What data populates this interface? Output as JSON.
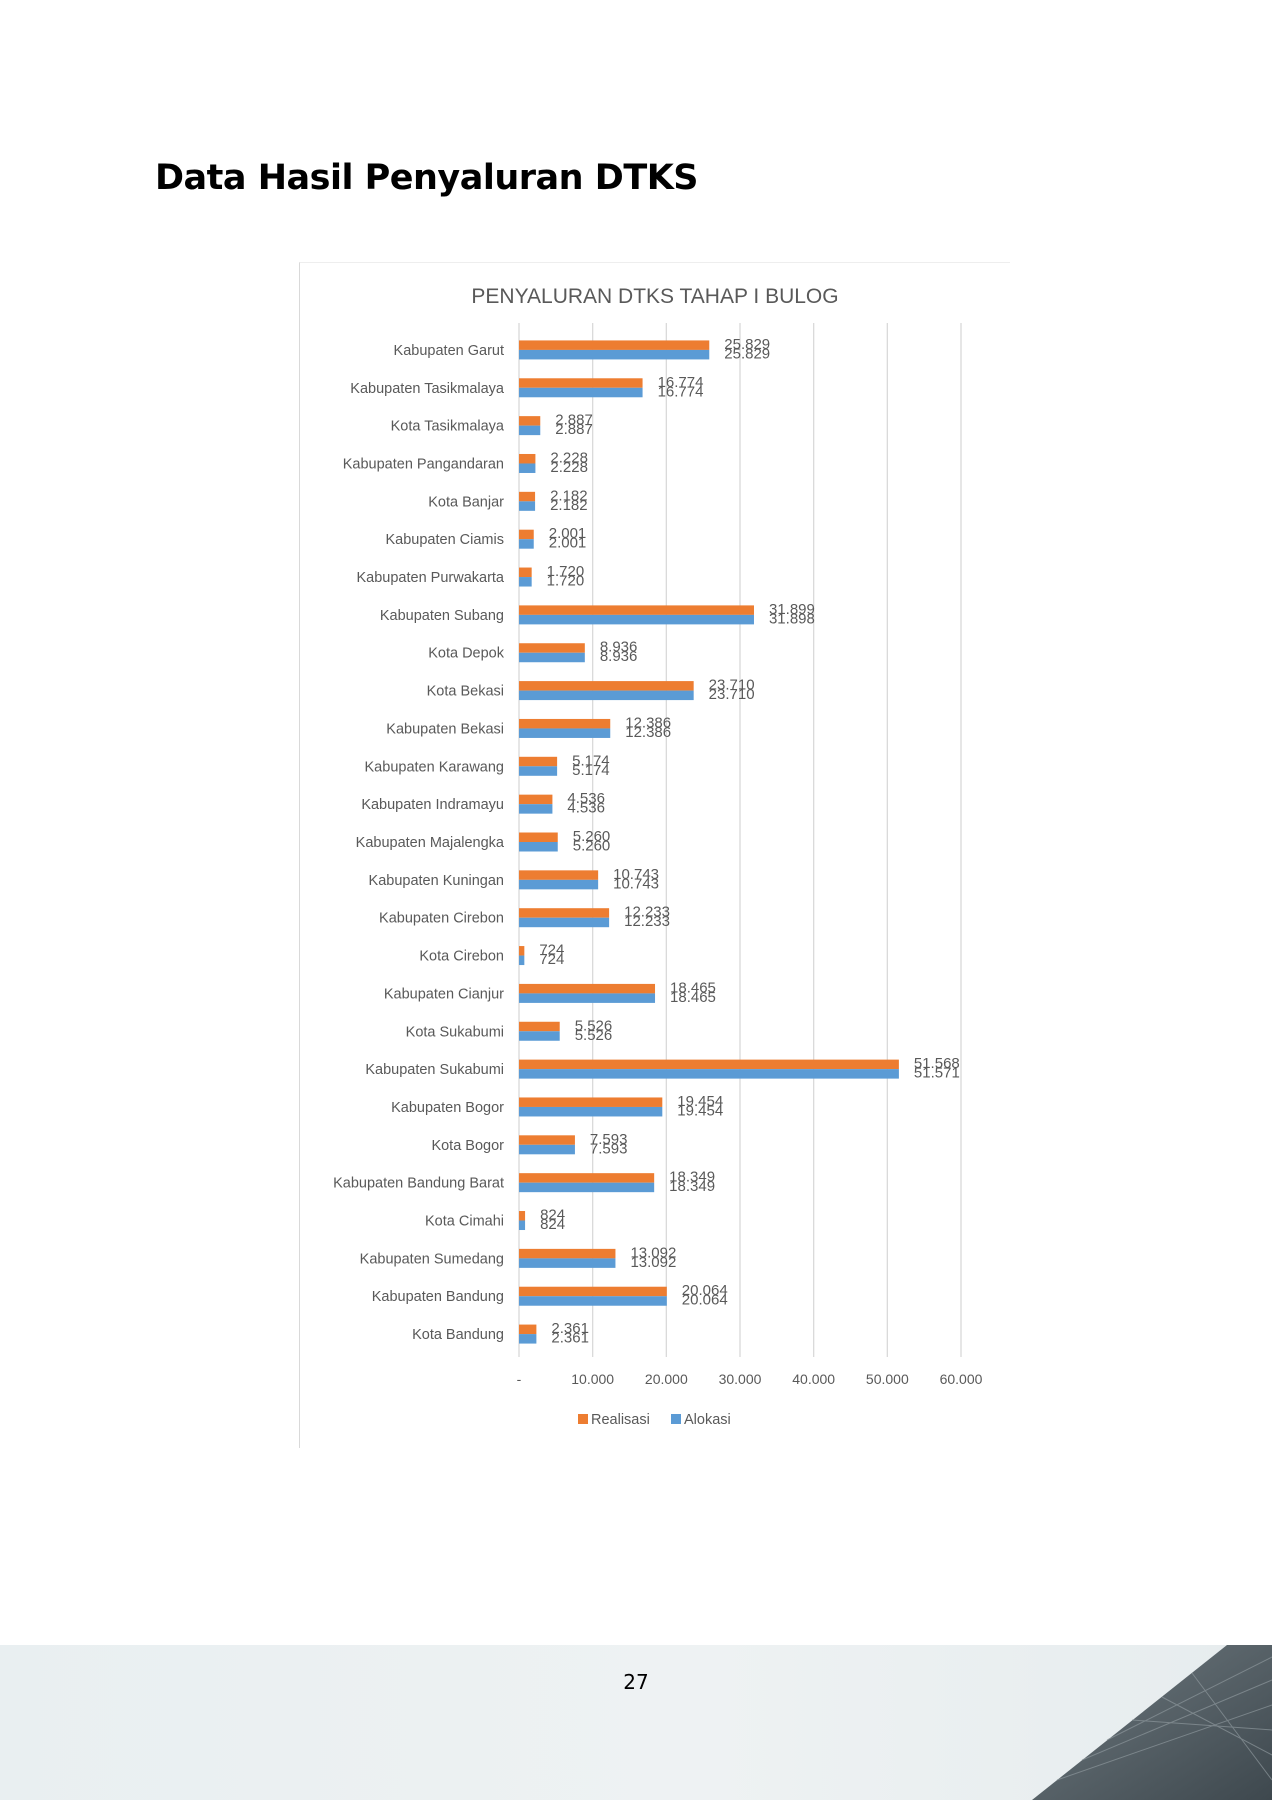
{
  "page": {
    "heading": "Data Hasil Penyaluran DTKS",
    "page_number": "27"
  },
  "colors": {
    "realisasi": "#ed7d31",
    "alokasi": "#5b9bd5",
    "gridline": "#d9d9d9",
    "text": "#595959"
  },
  "chart_data": {
    "type": "bar",
    "orientation": "horizontal",
    "title": "PENYALURAN DTKS TAHAP I BULOG",
    "xlabel": "",
    "ylabel": "",
    "xlim": [
      0,
      60000
    ],
    "x_ticks": [
      0,
      10000,
      20000,
      30000,
      40000,
      50000,
      60000
    ],
    "x_tick_labels": [
      "-",
      "10.000",
      "20.000",
      "30.000",
      "40.000",
      "50.000",
      "60.000"
    ],
    "grid": "vertical",
    "legend_position": "bottom",
    "categories": [
      "Kabupaten Garut",
      "Kabupaten Tasikmalaya",
      "Kota Tasikmalaya",
      "Kabupaten Pangandaran",
      "Kota Banjar",
      "Kabupaten Ciamis",
      "Kabupaten Purwakarta",
      "Kabupaten Subang",
      "Kota Depok",
      "Kota Bekasi",
      "Kabupaten Bekasi",
      "Kabupaten Karawang",
      "Kabupaten Indramayu",
      "Kabupaten Majalengka",
      "Kabupaten Kuningan",
      "Kabupaten Cirebon",
      "Kota Cirebon",
      "Kabupaten Cianjur",
      "Kota Sukabumi",
      "Kabupaten Sukabumi",
      "Kabupaten Bogor",
      "Kota Bogor",
      "Kabupaten Bandung Barat",
      "Kota Cimahi",
      "Kabupaten Sumedang",
      "Kabupaten Bandung",
      "Kota Bandung"
    ],
    "series": [
      {
        "name": "Realisasi",
        "values": [
          25829,
          16774,
          2887,
          2228,
          2182,
          2001,
          1720,
          31899,
          8936,
          23710,
          12386,
          5174,
          4536,
          5260,
          10743,
          12233,
          724,
          18465,
          5526,
          51568,
          19454,
          7593,
          18349,
          824,
          13092,
          20064,
          2361
        ],
        "labels": [
          "25.829",
          "16.774",
          "2.887",
          "2.228",
          "2.182",
          "2.001",
          "1.720",
          "31.899",
          "8.936",
          "23.710",
          "12.386",
          "5.174",
          "4.536",
          "5.260",
          "10.743",
          "12.233",
          "724",
          "18.465",
          "5.526",
          "51.568",
          "19.454",
          "7.593",
          "18.349",
          "824",
          "13.092",
          "20.064",
          "2.361"
        ]
      },
      {
        "name": "Alokasi",
        "values": [
          25829,
          16774,
          2887,
          2228,
          2182,
          2001,
          1720,
          31898,
          8936,
          23710,
          12386,
          5174,
          4536,
          5260,
          10743,
          12233,
          724,
          18465,
          5526,
          51571,
          19454,
          7593,
          18349,
          824,
          13092,
          20064,
          2361
        ],
        "labels": [
          "25.829",
          "16.774",
          "2.887",
          "2.228",
          "2.182",
          "2.001",
          "1.720",
          "31.898",
          "8.936",
          "23.710",
          "12.386",
          "5.174",
          "4.536",
          "5.260",
          "10.743",
          "12.233",
          "724",
          "18.465",
          "5.526",
          "51.571",
          "19.454",
          "7.593",
          "18.349",
          "824",
          "13.092",
          "20.064",
          "2.361"
        ]
      }
    ]
  }
}
